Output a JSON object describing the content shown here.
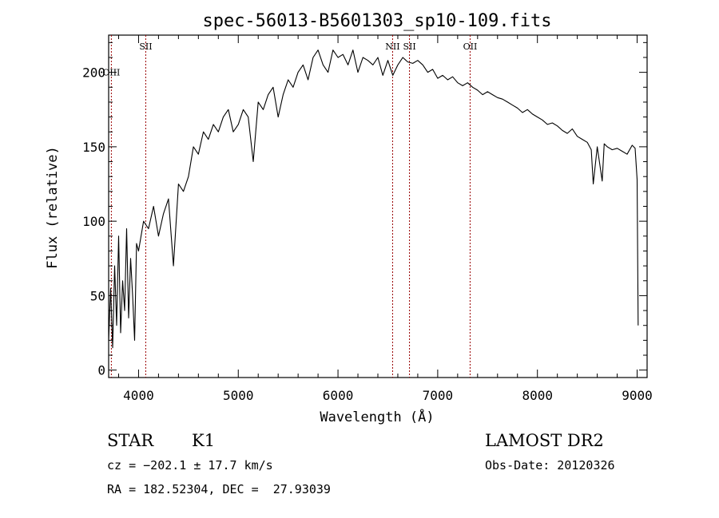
{
  "chart_data": {
    "type": "line",
    "title": "spec-56013-B5601303_sp10-109.fits",
    "xlabel": "Wavelength (Å)",
    "ylabel": "Flux (relative)",
    "xlim": [
      3700,
      9100
    ],
    "ylim": [
      -5,
      225
    ],
    "x_ticks": [
      4000,
      5000,
      6000,
      7000,
      8000,
      9000
    ],
    "y_ticks": [
      0,
      50,
      100,
      150,
      200
    ],
    "grid": false,
    "line_color": "#000000",
    "marker_color": "#990000",
    "series": [
      {
        "x": [
          3700,
          3720,
          3740,
          3760,
          3780,
          3800,
          3820,
          3840,
          3860,
          3880,
          3900,
          3920,
          3940,
          3960,
          3980,
          4000,
          4050,
          4100,
          4150,
          4200,
          4250,
          4300,
          4350,
          4400,
          4450,
          4500,
          4550,
          4600,
          4650,
          4700,
          4750,
          4800,
          4850,
          4900,
          4950,
          5000,
          5050,
          5100,
          5150,
          5200,
          5250,
          5300,
          5350,
          5400,
          5450,
          5500,
          5550,
          5600,
          5650,
          5700,
          5750,
          5800,
          5850,
          5900,
          5950,
          6000,
          6050,
          6100,
          6150,
          6200,
          6250,
          6300,
          6350,
          6400,
          6450,
          6500,
          6550,
          6600,
          6650,
          6700,
          6750,
          6800,
          6850,
          6900,
          6950,
          7000,
          7050,
          7100,
          7150,
          7200,
          7250,
          7300,
          7350,
          7400,
          7450,
          7500,
          7550,
          7600,
          7650,
          7700,
          7750,
          7800,
          7850,
          7900,
          7950,
          8000,
          8050,
          8100,
          8150,
          8200,
          8250,
          8300,
          8350,
          8400,
          8450,
          8500,
          8540,
          8560,
          8600,
          8650,
          8670,
          8700,
          8750,
          8800,
          8850,
          8900,
          8950,
          8980,
          9000,
          9010
        ],
        "y": [
          20,
          55,
          15,
          70,
          30,
          90,
          25,
          60,
          40,
          95,
          35,
          75,
          50,
          20,
          85,
          80,
          100,
          95,
          110,
          90,
          105,
          115,
          70,
          125,
          120,
          130,
          150,
          145,
          160,
          155,
          165,
          160,
          170,
          175,
          160,
          165,
          175,
          170,
          140,
          180,
          175,
          185,
          190,
          170,
          185,
          195,
          190,
          200,
          205,
          195,
          210,
          215,
          205,
          200,
          215,
          210,
          212,
          205,
          215,
          200,
          210,
          208,
          205,
          210,
          198,
          208,
          198,
          205,
          210,
          207,
          206,
          208,
          205,
          200,
          202,
          196,
          198,
          195,
          197,
          193,
          191,
          193,
          190,
          188,
          185,
          187,
          185,
          183,
          182,
          180,
          178,
          176,
          173,
          175,
          172,
          170,
          168,
          165,
          166,
          164,
          161,
          159,
          162,
          157,
          155,
          153,
          148,
          125,
          150,
          127,
          152,
          150,
          148,
          149,
          147,
          145,
          151,
          149,
          128,
          30
        ]
      }
    ],
    "line_markers": [
      {
        "label": "OIII",
        "x": 3727
      },
      {
        "label": "SII",
        "x": 4072
      },
      {
        "label": "NII",
        "x": 6548
      },
      {
        "label": "SII",
        "x": 6717
      },
      {
        "label": "OII",
        "x": 7325
      }
    ]
  },
  "info": {
    "object_class": "STAR",
    "subclass": "K1",
    "survey": "LAMOST DR2",
    "redshift": "cz = −202.1 ± 17.7 km/s",
    "obs_date": "Obs-Date: 20120326",
    "coords": "RA = 182.52304, DEC =  27.93039"
  }
}
